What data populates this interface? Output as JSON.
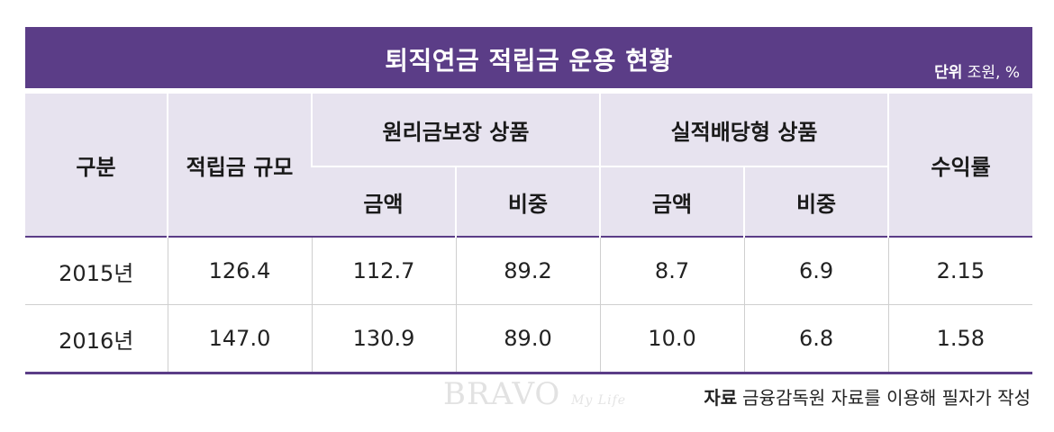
{
  "title": "퇴직연금 적립금 운용 현황",
  "unit": {
    "label": "단위",
    "value": "조원, %"
  },
  "header": {
    "category": "구분",
    "reserve_size": "적립금 규모",
    "guaranteed": "원리금보장 상품",
    "performance": "실적배당형 상품",
    "yield": "수익률",
    "amount": "금액",
    "share": "비중"
  },
  "rows": [
    {
      "year": "2015년",
      "reserve": "126.4",
      "g_amount": "112.7",
      "g_share": "89.2",
      "p_amount": "8.7",
      "p_share": "6.9",
      "yield": "2.15"
    },
    {
      "year": "2016년",
      "reserve": "147.0",
      "g_amount": "130.9",
      "g_share": "89.0",
      "p_amount": "10.0",
      "p_share": "6.8",
      "yield": "1.58"
    }
  ],
  "watermark": {
    "main": "BRAVO",
    "sub": "My Life"
  },
  "source": {
    "label": "자료",
    "text": "금융감독원 자료를 이용해 필자가 작성"
  },
  "colors": {
    "accent": "#5b3d87",
    "header_bg": "#e7e3ef"
  }
}
